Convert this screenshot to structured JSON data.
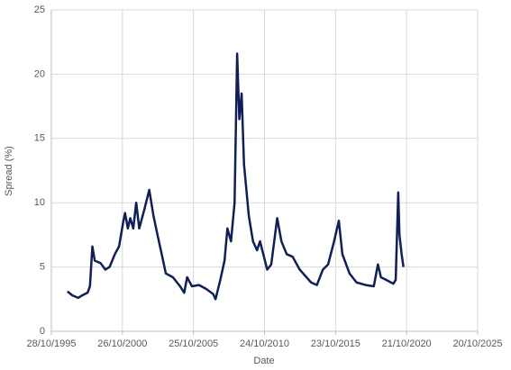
{
  "chart_data": {
    "type": "line",
    "x_label": "Date",
    "y_label": "Spread (%)",
    "x": [
      "1996-12-15",
      "1997-04-15",
      "1997-09-15",
      "1998-01-01",
      "1998-05-15",
      "1998-07-15",
      "1998-09-15",
      "1998-11-15",
      "1999-04-15",
      "1999-08-15",
      "1999-12-01",
      "2000-04-15",
      "2000-08-01",
      "2000-11-15",
      "2001-01-01",
      "2001-03-15",
      "2001-05-15",
      "2001-08-01",
      "2001-10-15",
      "2002-01-01",
      "2002-05-15",
      "2002-09-15",
      "2003-01-01",
      "2003-04-15",
      "2003-08-01",
      "2003-11-15",
      "2004-05-15",
      "2004-11-15",
      "2005-03-01",
      "2005-05-15",
      "2005-09-15",
      "2006-03-15",
      "2006-09-15",
      "2007-03-15",
      "2007-05-15",
      "2007-09-15",
      "2008-01-01",
      "2008-03-15",
      "2008-06-15",
      "2008-09-15",
      "2008-11-20",
      "2009-01-15",
      "2009-03-15",
      "2009-05-15",
      "2009-09-15",
      "2010-01-01",
      "2010-04-15",
      "2010-07-01",
      "2011-01-01",
      "2011-04-15",
      "2011-09-15",
      "2012-01-01",
      "2012-05-15",
      "2012-10-15",
      "2013-04-15",
      "2014-02-01",
      "2014-07-01",
      "2014-12-01",
      "2015-04-15",
      "2015-09-15",
      "2016-01-15",
      "2016-04-15",
      "2016-10-15",
      "2017-04-15",
      "2017-12-01",
      "2018-07-01",
      "2018-10-15",
      "2019-01-01",
      "2019-05-15",
      "2019-11-15",
      "2020-01-15",
      "2020-03-20",
      "2020-04-20",
      "2020-06-15",
      "2020-08-01"
    ],
    "series": [
      {
        "name": "Spread",
        "color": "#0d1f5c",
        "values": [
          3.1,
          2.8,
          2.6,
          2.8,
          3.0,
          3.5,
          6.6,
          5.5,
          5.3,
          4.8,
          5.0,
          6.0,
          6.6,
          8.5,
          9.2,
          8.0,
          8.8,
          8.0,
          10.0,
          8.0,
          9.5,
          11.0,
          9.0,
          7.5,
          6.0,
          4.5,
          4.2,
          3.5,
          3.0,
          4.2,
          3.5,
          3.6,
          3.3,
          2.9,
          2.5,
          4.0,
          5.5,
          8.0,
          7.0,
          10.0,
          21.6,
          16.5,
          18.5,
          13.0,
          9.0,
          7.0,
          6.3,
          7.0,
          4.8,
          5.2,
          8.8,
          7.0,
          6.0,
          5.8,
          4.8,
          3.8,
          3.6,
          4.8,
          5.2,
          7.0,
          8.6,
          6.0,
          4.5,
          3.8,
          3.6,
          3.5,
          5.2,
          4.2,
          4.0,
          3.7,
          4.0,
          10.8,
          7.5,
          6.0,
          5.0
        ]
      }
    ],
    "xlim": [
      "1995-10-28",
      "2025-10-20"
    ],
    "xticks": [
      {
        "value": "1995-10-28",
        "label": "28/10/1995"
      },
      {
        "value": "2000-10-26",
        "label": "26/10/2000"
      },
      {
        "value": "2005-10-25",
        "label": "25/10/2005"
      },
      {
        "value": "2010-10-24",
        "label": "24/10/2010"
      },
      {
        "value": "2015-10-23",
        "label": "23/10/2015"
      },
      {
        "value": "2020-10-21",
        "label": "21/10/2020"
      },
      {
        "value": "2025-10-20",
        "label": "20/10/2025"
      }
    ],
    "ylim": [
      0,
      25
    ],
    "yticks": [
      0,
      5,
      10,
      15,
      20,
      25
    ],
    "grid": true
  }
}
